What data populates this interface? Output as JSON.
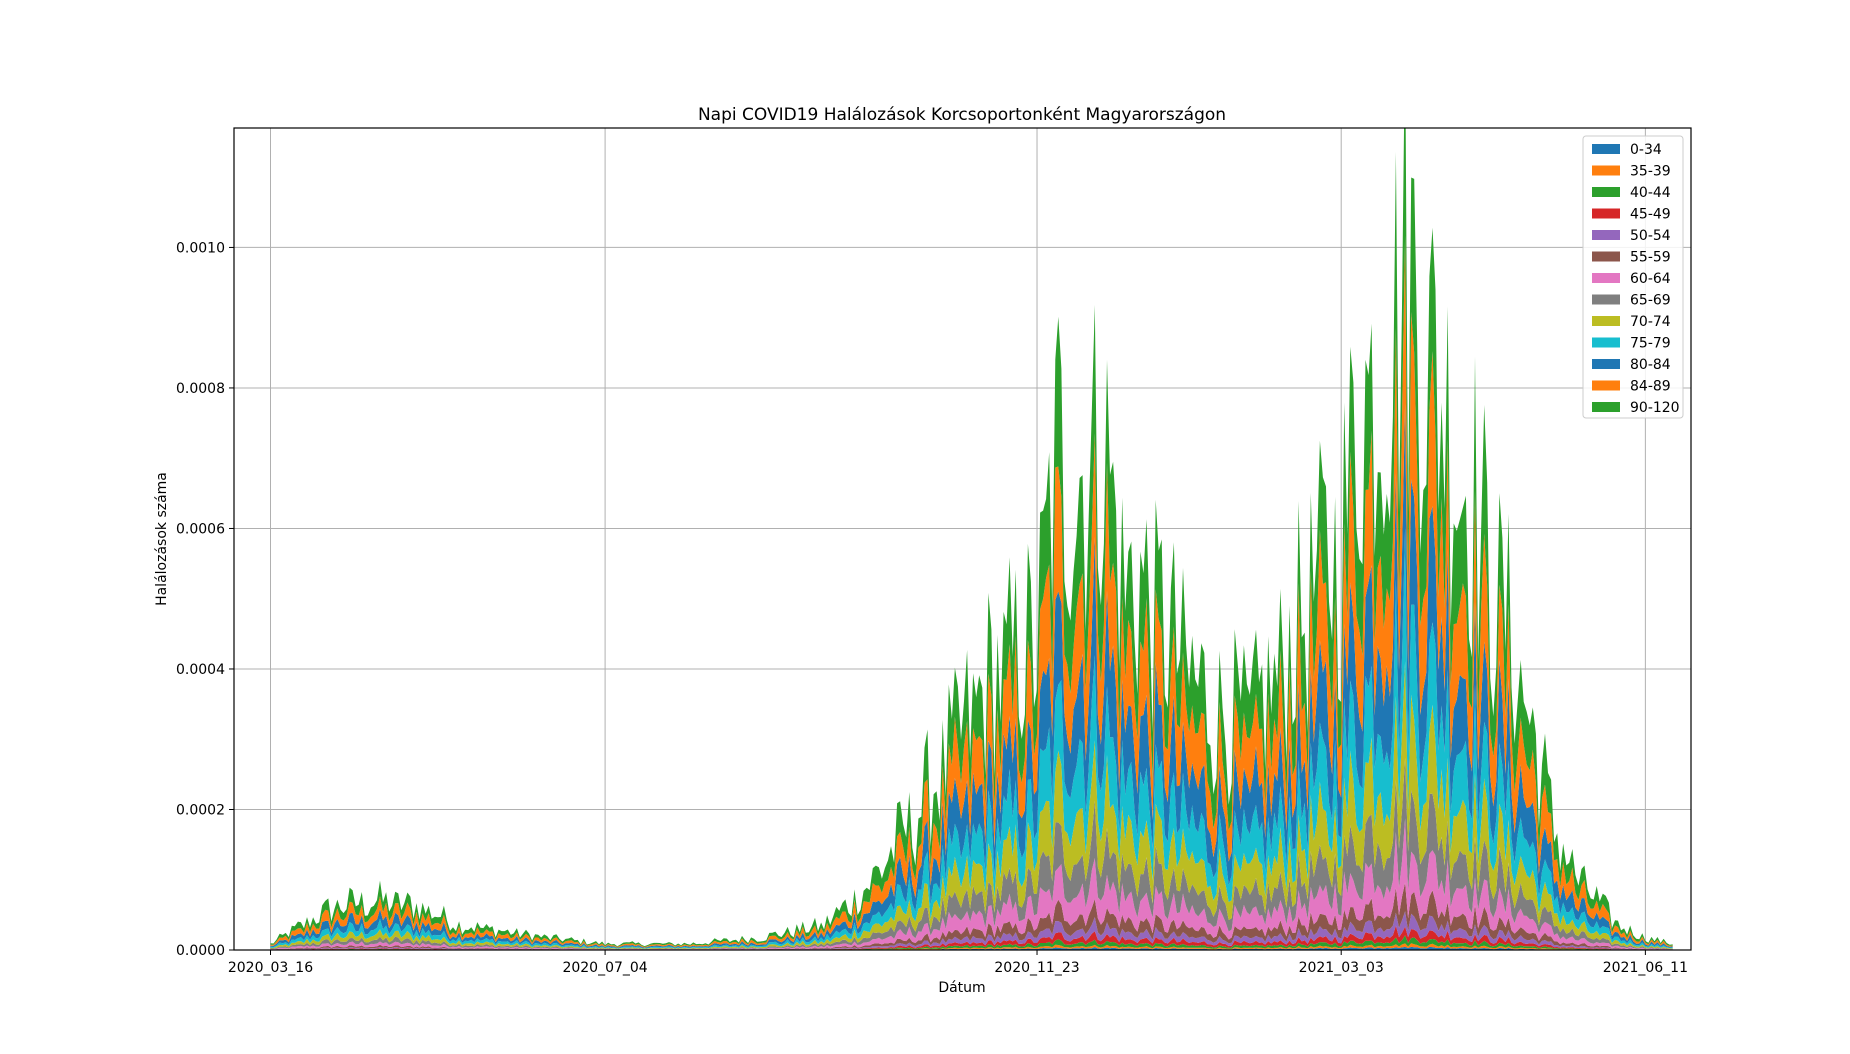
{
  "chart_data": {
    "type": "area",
    "stacked": true,
    "title": "Napi COVID19 Halálozások Korcsoportonként Magyarországon",
    "xlabel": "Dátum",
    "ylabel": "Halálozások száma",
    "x_ticks": [
      "2020_03_16",
      "2020_07_04",
      "2020_11_23",
      "2021_03_03",
      "2021_06_11"
    ],
    "x_start": "2020_03_04",
    "x_end": "2021_06_26",
    "y_ticks": [
      "0.0000",
      "0.0002",
      "0.0004",
      "0.0006",
      "0.0008",
      "0.0010"
    ],
    "ylim": [
      0,
      0.00117
    ],
    "grid": true,
    "legend_position": "top-right",
    "series": [
      {
        "name": "0-34",
        "color": "#1f77b4"
      },
      {
        "name": "35-39",
        "color": "#ff7f0e"
      },
      {
        "name": "40-44",
        "color": "#2ca02c"
      },
      {
        "name": "45-49",
        "color": "#d62728"
      },
      {
        "name": "50-54",
        "color": "#9467bd"
      },
      {
        "name": "55-59",
        "color": "#8c564b"
      },
      {
        "name": "60-64",
        "color": "#e377c2"
      },
      {
        "name": "65-69",
        "color": "#7f7f7f"
      },
      {
        "name": "70-74",
        "color": "#bcbd22"
      },
      {
        "name": "75-79",
        "color": "#17becf"
      },
      {
        "name": "80-84",
        "color": "#1f77b4"
      },
      {
        "name": "84-89",
        "color": "#ff7f0e"
      },
      {
        "name": "90-120",
        "color": "#2ca02c"
      }
    ],
    "approx_total_series": {
      "note_units": "weekly-ish samples of stacked total (deaths per capita)",
      "dates": [
        "2020_03_16",
        "2020_04_06",
        "2020_04_20",
        "2020_05_04",
        "2020_05_18",
        "2020_06_01",
        "2020_06_15",
        "2020_07_04",
        "2020_08_01",
        "2020_08_24",
        "2020_09_14",
        "2020_09_28",
        "2020_10_12",
        "2020_10_26",
        "2020_11_09",
        "2020_11_23",
        "2020_11_30",
        "2020_12_07",
        "2020_12_14",
        "2020_12_21",
        "2020_12_28",
        "2021_01_04",
        "2021_01_11",
        "2021_01_18",
        "2021_01_25",
        "2021_02_01",
        "2021_02_08",
        "2021_02_15",
        "2021_02_22",
        "2021_03_03",
        "2021_03_10",
        "2021_03_17",
        "2021_03_24",
        "2021_03_31",
        "2021_04_07",
        "2021_04_14",
        "2021_04_21",
        "2021_04_28",
        "2021_05_05",
        "2021_05_12",
        "2021_05_19",
        "2021_05_26",
        "2021_06_02",
        "2021_06_11",
        "2021_06_20"
      ],
      "values": [
        1e-05,
        7e-05,
        8e-05,
        7e-05,
        4e-05,
        3e-05,
        2e-05,
        1e-05,
        1e-05,
        2e-05,
        4e-05,
        0.0001,
        0.0002,
        0.00032,
        0.00044,
        0.0005,
        0.0008,
        0.00075,
        0.00085,
        0.0006,
        0.00058,
        0.00052,
        0.00045,
        0.0004,
        0.00038,
        0.00036,
        0.00042,
        0.0005,
        0.00058,
        0.00065,
        0.0009,
        0.00095,
        0.0011,
        0.001,
        0.00085,
        0.00075,
        0.0006,
        0.0005,
        0.00035,
        0.0002,
        0.00012,
        8e-05,
        4e-05,
        2e-05,
        1e-05
      ]
    },
    "group_shares": [
      0.004,
      0.004,
      0.008,
      0.012,
      0.018,
      0.03,
      0.06,
      0.075,
      0.105,
      0.13,
      0.16,
      0.19,
      0.204
    ]
  }
}
